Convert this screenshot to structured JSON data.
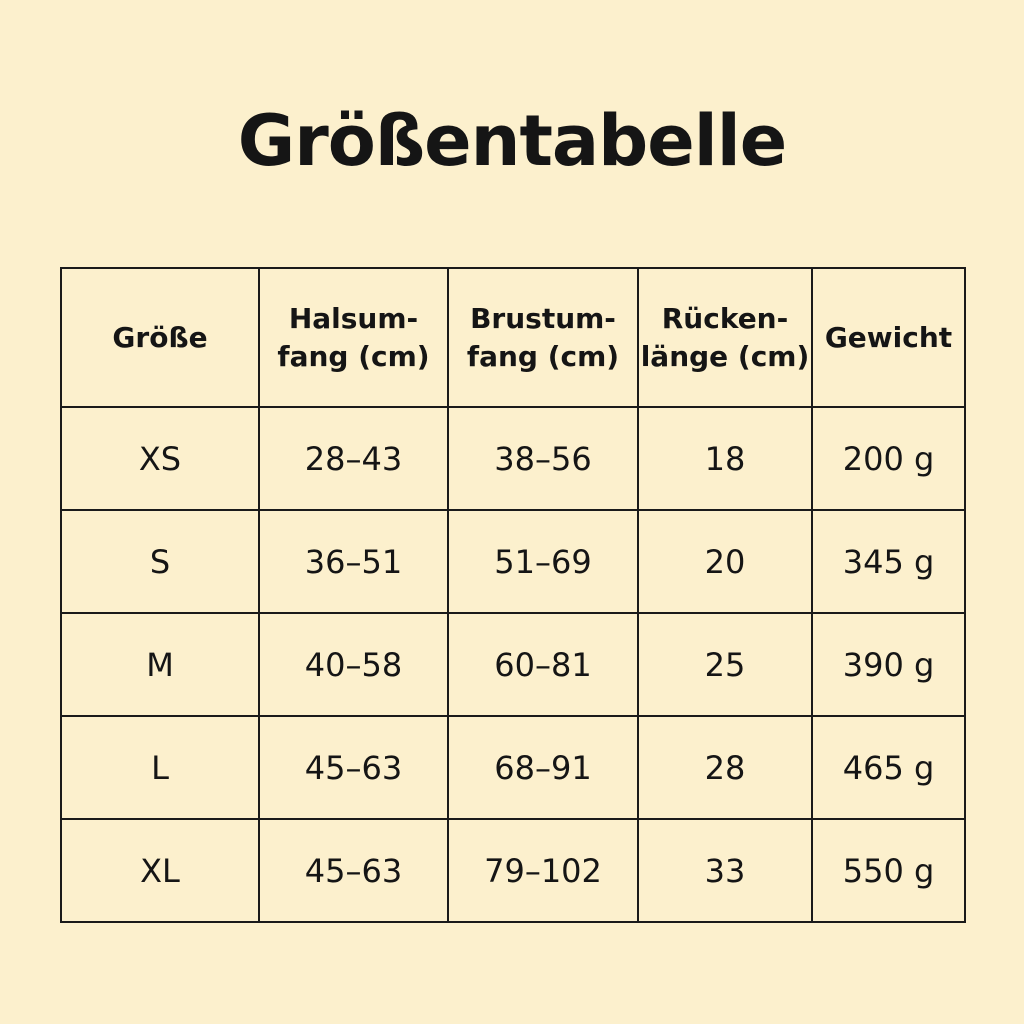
{
  "title": "Größentabelle",
  "table": {
    "headers": [
      {
        "line1": "Größe",
        "line2": ""
      },
      {
        "line1": "Halsum-",
        "line2": "fang (cm)"
      },
      {
        "line1": "Brustum-",
        "line2": "fang (cm)"
      },
      {
        "line1": "Rücken-",
        "line2": "länge (cm)"
      },
      {
        "line1": "Gewicht",
        "line2": ""
      }
    ],
    "rows": [
      [
        "XS",
        "28–43",
        "38–56",
        "18",
        "200 g"
      ],
      [
        "S",
        "36–51",
        "51–69",
        "20",
        "345 g"
      ],
      [
        "M",
        "40–58",
        "60–81",
        "25",
        "390 g"
      ],
      [
        "L",
        "45–63",
        "68–91",
        "28",
        "465 g"
      ],
      [
        "XL",
        "45–63",
        "79–102",
        "33",
        "550 g"
      ]
    ]
  },
  "colors": {
    "background": "#FCF0CD",
    "text": "#151515"
  }
}
